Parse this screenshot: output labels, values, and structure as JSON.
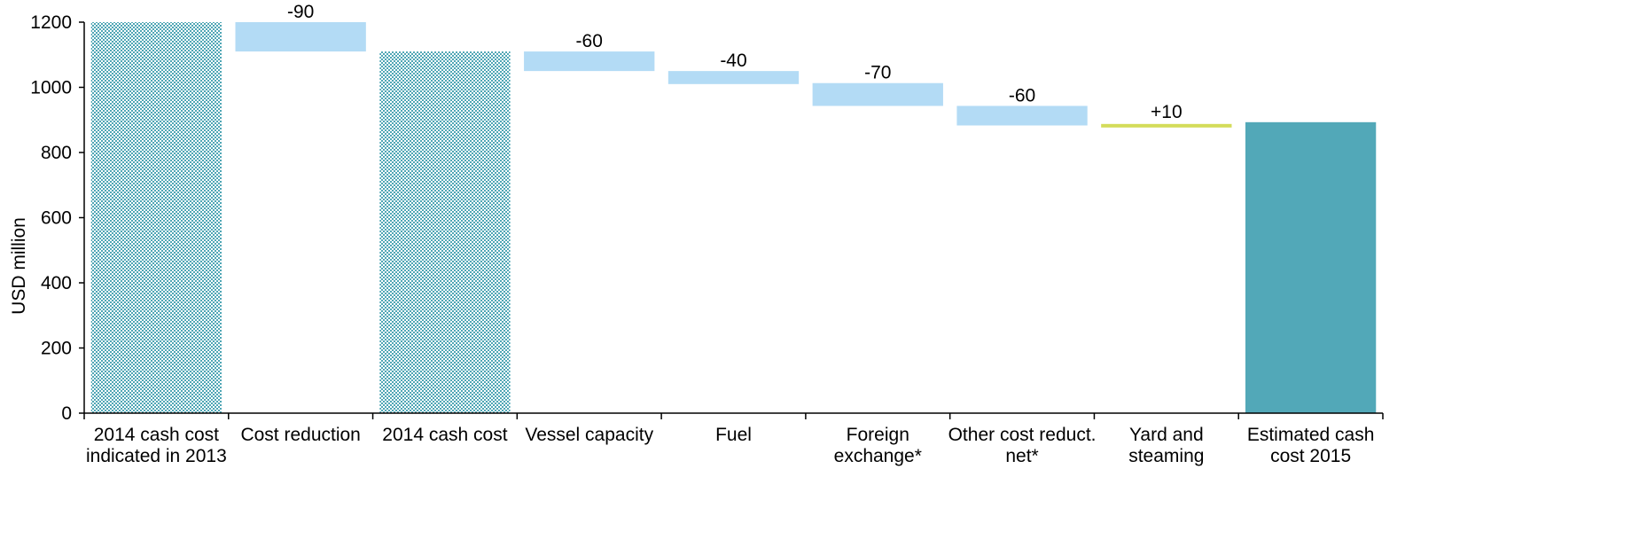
{
  "chart_data": {
    "type": "waterfall",
    "title": "",
    "xlabel": "",
    "ylabel": "USD million",
    "ylim": [
      0,
      1200
    ],
    "yticks": [
      0,
      200,
      400,
      600,
      800,
      1000,
      1200
    ],
    "grid": false,
    "categories": [
      [
        "2014 cash cost",
        "indicated in 2013"
      ],
      [
        "Cost reduction"
      ],
      [
        "2014 cash cost"
      ],
      [
        "Vessel capacity"
      ],
      [
        "Fuel"
      ],
      [
        "Foreign",
        "exchange*"
      ],
      [
        "Other cost reduct.",
        "net*"
      ],
      [
        "Yard and",
        "steaming"
      ],
      [
        "Estimated cash",
        "cost 2015"
      ]
    ],
    "bars": [
      {
        "kind": "total-hatched",
        "start": 0,
        "end": 1200,
        "label": ""
      },
      {
        "kind": "delta",
        "start": 1200,
        "end": 1110,
        "label": "-90"
      },
      {
        "kind": "total-hatched",
        "start": 0,
        "end": 1110,
        "label": ""
      },
      {
        "kind": "delta",
        "start": 1110,
        "end": 1050,
        "label": "-60"
      },
      {
        "kind": "delta",
        "start": 1050,
        "end": 1010,
        "label": "-40"
      },
      {
        "kind": "delta",
        "start": 1013,
        "end": 943,
        "label": "-70"
      },
      {
        "kind": "delta",
        "start": 943,
        "end": 883,
        "label": "-60"
      },
      {
        "kind": "increase",
        "start": 883,
        "end": 893,
        "label": "+10"
      },
      {
        "kind": "total-solid",
        "start": 0,
        "end": 893,
        "label": ""
      }
    ],
    "colors": {
      "hatched": "#4fa6b5",
      "delta": "#b3dbf5",
      "increase": "#d4dc5a",
      "total": "#52a8b8",
      "axis": "#000000"
    }
  }
}
